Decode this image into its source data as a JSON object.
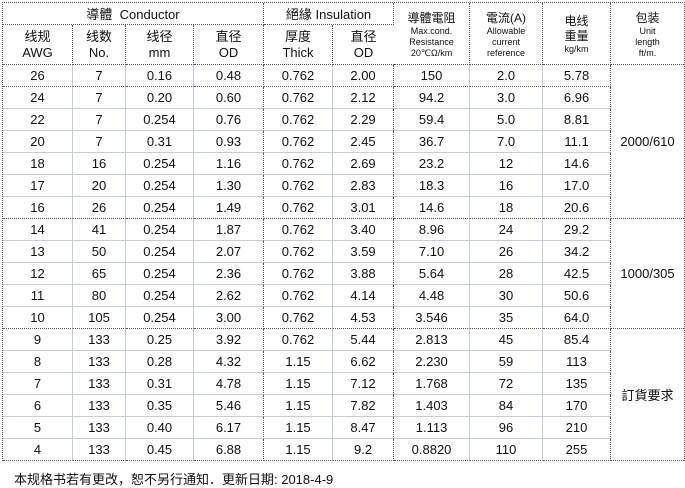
{
  "header": {
    "conductor_group": "導體  Conductor",
    "insulation_group": "絕緣 Insulation",
    "awg": [
      "线规",
      "AWG"
    ],
    "strands": [
      "线数",
      "No."
    ],
    "diameter": [
      "线径",
      "mm"
    ],
    "conductor_od": [
      "直径",
      "OD"
    ],
    "thickness": [
      "厚度",
      "Thick"
    ],
    "insulation_od": [
      "直径",
      "OD"
    ],
    "resistance": [
      "導體電阻",
      "Max.cond.",
      "Resistance",
      "20℃Ω/km"
    ],
    "current": [
      "電流(A)",
      "Allowable",
      "current",
      "reference"
    ],
    "weight": [
      "电线",
      "重量",
      "kg/km"
    ],
    "package": [
      "包装",
      "Unit",
      "length",
      "ft/m."
    ]
  },
  "columns_semantic": [
    "awg",
    "strands",
    "diameter-mm",
    "conductor-od",
    "thickness",
    "insulation-od",
    "resistance",
    "current",
    "weight"
  ],
  "rows": [
    [
      "26",
      "7",
      "0.16",
      "0.48",
      "0.762",
      "2.00",
      "150",
      "2.0",
      "5.78"
    ],
    [
      "24",
      "7",
      "0.20",
      "0.60",
      "0.762",
      "2.12",
      "94.2",
      "3.0",
      "6.96"
    ],
    [
      "22",
      "7",
      "0.254",
      "0.76",
      "0.762",
      "2.29",
      "59.4",
      "5.0",
      "8.81"
    ],
    [
      "20",
      "7",
      "0.31",
      "0.93",
      "0.762",
      "2.45",
      "36.7",
      "7.0",
      "11.1"
    ],
    [
      "18",
      "16",
      "0.254",
      "1.16",
      "0.762",
      "2.69",
      "23.2",
      "12",
      "14.6"
    ],
    [
      "17",
      "20",
      "0.254",
      "1.30",
      "0.762",
      "2.83",
      "18.3",
      "16",
      "17.0"
    ],
    [
      "16",
      "26",
      "0.254",
      "1.49",
      "0.762",
      "3.01",
      "14.6",
      "18",
      "20.6"
    ],
    [
      "14",
      "41",
      "0.254",
      "1.87",
      "0.762",
      "3.40",
      "8.96",
      "24",
      "29.2"
    ],
    [
      "13",
      "50",
      "0.254",
      "2.07",
      "0.762",
      "3.59",
      "7.10",
      "26",
      "34.2"
    ],
    [
      "12",
      "65",
      "0.254",
      "2.36",
      "0.762",
      "3.88",
      "5.64",
      "28",
      "42.5"
    ],
    [
      "11",
      "80",
      "0.254",
      "2.62",
      "0.762",
      "4.14",
      "4.48",
      "30",
      "50.6"
    ],
    [
      "10",
      "105",
      "0.254",
      "3.00",
      "0.762",
      "4.53",
      "3.546",
      "35",
      "64.0"
    ],
    [
      "9",
      "133",
      "0.25",
      "3.92",
      "0.762",
      "5.44",
      "2.813",
      "45",
      "85.4"
    ],
    [
      "8",
      "133",
      "0.28",
      "4.32",
      "1.15",
      "6.62",
      "2.230",
      "59",
      "113"
    ],
    [
      "7",
      "133",
      "0.31",
      "4.78",
      "1.15",
      "7.12",
      "1.768",
      "72",
      "135"
    ],
    [
      "6",
      "133",
      "0.35",
      "5.46",
      "1.15",
      "7.82",
      "1.403",
      "84",
      "170"
    ],
    [
      "5",
      "133",
      "0.40",
      "6.17",
      "1.15",
      "8.47",
      "1.113",
      "96",
      "210"
    ],
    [
      "4",
      "133",
      "0.45",
      "6.88",
      "1.15",
      "9.2",
      "0.8820",
      "110",
      "255"
    ]
  ],
  "package_groups": [
    {
      "label": "2000/610",
      "start": 0,
      "span": 7
    },
    {
      "label": "1000/305",
      "start": 7,
      "span": 5
    },
    {
      "label": "訂貨要求",
      "start": 12,
      "span": 6
    }
  ],
  "dotted_row_bottoms": [
    0,
    6,
    11,
    17
  ],
  "dotted_col_rights": [
    3,
    5,
    8
  ],
  "footer": "本规格书若有更改，恕不另行通知．更新日期: 2018-4-9",
  "colors": {
    "grid_light": "#c2cede",
    "grid_dotted": "#555555",
    "text": "#111111",
    "background": "#ffffff"
  }
}
